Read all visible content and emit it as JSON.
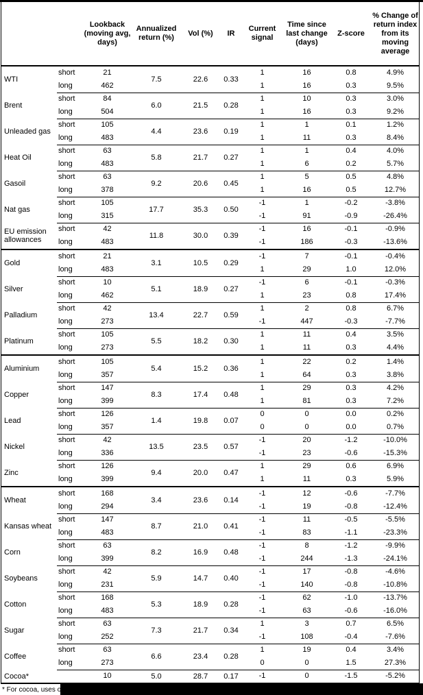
{
  "header": {
    "columns": [
      {
        "key": "name",
        "label": ""
      },
      {
        "key": "side",
        "label": ""
      },
      {
        "key": "lookback",
        "label": "Lookback (moving avg, days)"
      },
      {
        "key": "annualized-return",
        "label": "Annualized return (%)"
      },
      {
        "key": "vol",
        "label": "Vol (%)"
      },
      {
        "key": "ir",
        "label": "IR"
      },
      {
        "key": "current-signal",
        "label": "Current signal"
      },
      {
        "key": "time-since-last-change",
        "label": "Time since last change (days)"
      },
      {
        "key": "z-score",
        "label": "Z-score"
      },
      {
        "key": "pct-change-of-return-index",
        "label": "% Change of return index from its moving average"
      }
    ]
  },
  "groups": [
    {
      "key": "energy",
      "commodities": [
        {
          "name": "WTI",
          "annualized": "7.5",
          "vol": "22.6",
          "ir": "0.33",
          "rows": [
            {
              "side": "short",
              "lookback": "21",
              "signal": "1",
              "time": "16",
              "zscore": "0.8",
              "change": "4.9%"
            },
            {
              "side": "long",
              "lookback": "462",
              "signal": "1",
              "time": "16",
              "zscore": "0.3",
              "change": "9.5%"
            }
          ]
        },
        {
          "name": "Brent",
          "annualized": "6.0",
          "vol": "21.5",
          "ir": "0.28",
          "rows": [
            {
              "side": "short",
              "lookback": "84",
              "signal": "1",
              "time": "10",
              "zscore": "0.3",
              "change": "3.0%"
            },
            {
              "side": "long",
              "lookback": "504",
              "signal": "1",
              "time": "16",
              "zscore": "0.3",
              "change": "9.2%"
            }
          ]
        },
        {
          "name": "Unleaded gas",
          "annualized": "4.4",
          "vol": "23.6",
          "ir": "0.19",
          "rows": [
            {
              "side": "short",
              "lookback": "105",
              "signal": "1",
              "time": "1",
              "zscore": "0.1",
              "change": "1.2%"
            },
            {
              "side": "long",
              "lookback": "483",
              "signal": "1",
              "time": "11",
              "zscore": "0.3",
              "change": "8.4%"
            }
          ]
        },
        {
          "name": "Heat Oil",
          "annualized": "5.8",
          "vol": "21.7",
          "ir": "0.27",
          "rows": [
            {
              "side": "short",
              "lookback": "63",
              "signal": "1",
              "time": "1",
              "zscore": "0.4",
              "change": "4.0%"
            },
            {
              "side": "long",
              "lookback": "483",
              "signal": "1",
              "time": "6",
              "zscore": "0.2",
              "change": "5.7%"
            }
          ]
        },
        {
          "name": "Gasoil",
          "annualized": "9.2",
          "vol": "20.6",
          "ir": "0.45",
          "rows": [
            {
              "side": "short",
              "lookback": "63",
              "signal": "1",
              "time": "5",
              "zscore": "0.5",
              "change": "4.8%"
            },
            {
              "side": "long",
              "lookback": "378",
              "signal": "1",
              "time": "16",
              "zscore": "0.5",
              "change": "12.7%"
            }
          ]
        },
        {
          "name": "Nat gas",
          "annualized": "17.7",
          "vol": "35.3",
          "ir": "0.50",
          "rows": [
            {
              "side": "short",
              "lookback": "105",
              "signal": "-1",
              "time": "1",
              "zscore": "-0.2",
              "change": "-3.8%"
            },
            {
              "side": "long",
              "lookback": "315",
              "signal": "-1",
              "time": "91",
              "zscore": "-0.9",
              "change": "-26.4%"
            }
          ]
        },
        {
          "name": "EU emission allowances",
          "annualized": "11.8",
          "vol": "30.0",
          "ir": "0.39",
          "rows": [
            {
              "side": "short",
              "lookback": "42",
              "signal": "-1",
              "time": "16",
              "zscore": "-0.1",
              "change": "-0.9%"
            },
            {
              "side": "long",
              "lookback": "483",
              "signal": "-1",
              "time": "186",
              "zscore": "-0.3",
              "change": "-13.6%"
            }
          ]
        }
      ]
    },
    {
      "key": "precious-metals",
      "commodities": [
        {
          "name": "Gold",
          "annualized": "3.1",
          "vol": "10.5",
          "ir": "0.29",
          "rows": [
            {
              "side": "short",
              "lookback": "21",
              "signal": "-1",
              "time": "7",
              "zscore": "-0.1",
              "change": "-0.4%"
            },
            {
              "side": "long",
              "lookback": "483",
              "signal": "1",
              "time": "29",
              "zscore": "1.0",
              "change": "12.0%"
            }
          ]
        },
        {
          "name": "Silver",
          "annualized": "5.1",
          "vol": "18.9",
          "ir": "0.27",
          "rows": [
            {
              "side": "short",
              "lookback": "10",
              "signal": "-1",
              "time": "6",
              "zscore": "-0.1",
              "change": "-0.3%"
            },
            {
              "side": "long",
              "lookback": "462",
              "signal": "1",
              "time": "23",
              "zscore": "0.8",
              "change": "17.4%"
            }
          ]
        },
        {
          "name": "Palladium",
          "annualized": "13.4",
          "vol": "22.7",
          "ir": "0.59",
          "rows": [
            {
              "side": "short",
              "lookback": "42",
              "signal": "1",
              "time": "2",
              "zscore": "0.8",
              "change": "6.7%"
            },
            {
              "side": "long",
              "lookback": "273",
              "signal": "-1",
              "time": "447",
              "zscore": "-0.3",
              "change": "-7.7%"
            }
          ]
        },
        {
          "name": "Platinum",
          "annualized": "5.5",
          "vol": "18.2",
          "ir": "0.30",
          "rows": [
            {
              "side": "short",
              "lookback": "105",
              "signal": "1",
              "time": "11",
              "zscore": "0.4",
              "change": "3.5%"
            },
            {
              "side": "long",
              "lookback": "273",
              "signal": "1",
              "time": "11",
              "zscore": "0.3",
              "change": "4.4%"
            }
          ]
        }
      ]
    },
    {
      "key": "base-metals",
      "commodities": [
        {
          "name": "Aluminium",
          "annualized": "5.4",
          "vol": "15.2",
          "ir": "0.36",
          "rows": [
            {
              "side": "short",
              "lookback": "105",
              "signal": "1",
              "time": "22",
              "zscore": "0.2",
              "change": "1.4%"
            },
            {
              "side": "long",
              "lookback": "357",
              "signal": "1",
              "time": "64",
              "zscore": "0.3",
              "change": "3.8%"
            }
          ]
        },
        {
          "name": "Copper",
          "annualized": "8.3",
          "vol": "17.4",
          "ir": "0.48",
          "rows": [
            {
              "side": "short",
              "lookback": "147",
              "signal": "1",
              "time": "29",
              "zscore": "0.3",
              "change": "4.2%"
            },
            {
              "side": "long",
              "lookback": "399",
              "signal": "1",
              "time": "81",
              "zscore": "0.3",
              "change": "7.2%"
            }
          ]
        },
        {
          "name": "Lead",
          "annualized": "1.4",
          "vol": "19.8",
          "ir": "0.07",
          "rows": [
            {
              "side": "short",
              "lookback": "126",
              "signal": "0",
              "time": "0",
              "zscore": "0.0",
              "change": "0.2%"
            },
            {
              "side": "long",
              "lookback": "357",
              "signal": "0",
              "time": "0",
              "zscore": "0.0",
              "change": "0.7%"
            }
          ]
        },
        {
          "name": "Nickel",
          "annualized": "13.5",
          "vol": "23.5",
          "ir": "0.57",
          "rows": [
            {
              "side": "short",
              "lookback": "42",
              "signal": "-1",
              "time": "20",
              "zscore": "-1.2",
              "change": "-10.0%"
            },
            {
              "side": "long",
              "lookback": "336",
              "signal": "-1",
              "time": "23",
              "zscore": "-0.6",
              "change": "-15.3%"
            }
          ]
        },
        {
          "name": "Zinc",
          "annualized": "9.4",
          "vol": "20.0",
          "ir": "0.47",
          "rows": [
            {
              "side": "short",
              "lookback": "126",
              "signal": "1",
              "time": "29",
              "zscore": "0.6",
              "change": "6.9%"
            },
            {
              "side": "long",
              "lookback": "399",
              "signal": "1",
              "time": "11",
              "zscore": "0.3",
              "change": "5.9%"
            }
          ]
        }
      ]
    },
    {
      "key": "agriculture",
      "commodities": [
        {
          "name": "Wheat",
          "annualized": "3.4",
          "vol": "23.6",
          "ir": "0.14",
          "rows": [
            {
              "side": "short",
              "lookback": "168",
              "signal": "-1",
              "time": "12",
              "zscore": "-0.6",
              "change": "-7.7%"
            },
            {
              "side": "long",
              "lookback": "294",
              "signal": "-1",
              "time": "19",
              "zscore": "-0.8",
              "change": "-12.4%"
            }
          ]
        },
        {
          "name": "Kansas wheat",
          "annualized": "8.7",
          "vol": "21.0",
          "ir": "0.41",
          "rows": [
            {
              "side": "short",
              "lookback": "147",
              "signal": "-1",
              "time": "11",
              "zscore": "-0.5",
              "change": "-5.5%"
            },
            {
              "side": "long",
              "lookback": "483",
              "signal": "-1",
              "time": "83",
              "zscore": "-1.1",
              "change": "-23.3%"
            }
          ]
        },
        {
          "name": "Corn",
          "annualized": "8.2",
          "vol": "16.9",
          "ir": "0.48",
          "rows": [
            {
              "side": "short",
              "lookback": "63",
              "signal": "-1",
              "time": "8",
              "zscore": "-1.2",
              "change": "-9.9%"
            },
            {
              "side": "long",
              "lookback": "399",
              "signal": "-1",
              "time": "244",
              "zscore": "-1.3",
              "change": "-24.1%"
            }
          ]
        },
        {
          "name": "Soybeans",
          "annualized": "5.9",
          "vol": "14.7",
          "ir": "0.40",
          "rows": [
            {
              "side": "short",
              "lookback": "42",
              "signal": "-1",
              "time": "17",
              "zscore": "-0.8",
              "change": "-4.6%"
            },
            {
              "side": "long",
              "lookback": "231",
              "signal": "-1",
              "time": "140",
              "zscore": "-0.8",
              "change": "-10.8%"
            }
          ]
        },
        {
          "name": "Cotton",
          "annualized": "5.3",
          "vol": "18.9",
          "ir": "0.28",
          "rows": [
            {
              "side": "short",
              "lookback": "168",
              "signal": "-1",
              "time": "62",
              "zscore": "-1.0",
              "change": "-13.7%"
            },
            {
              "side": "long",
              "lookback": "483",
              "signal": "-1",
              "time": "63",
              "zscore": "-0.6",
              "change": "-16.0%"
            }
          ]
        },
        {
          "name": "Sugar",
          "annualized": "7.3",
          "vol": "21.7",
          "ir": "0.34",
          "rows": [
            {
              "side": "short",
              "lookback": "63",
              "signal": "1",
              "time": "3",
              "zscore": "0.7",
              "change": "6.5%"
            },
            {
              "side": "long",
              "lookback": "252",
              "signal": "-1",
              "time": "108",
              "zscore": "-0.4",
              "change": "-7.6%"
            }
          ]
        },
        {
          "name": "Coffee",
          "annualized": "6.6",
          "vol": "23.4",
          "ir": "0.28",
          "rows": [
            {
              "side": "short",
              "lookback": "63",
              "signal": "1",
              "time": "19",
              "zscore": "0.4",
              "change": "3.4%"
            },
            {
              "side": "long",
              "lookback": "273",
              "signal": "0",
              "time": "0",
              "zscore": "1.5",
              "change": "27.3%"
            }
          ]
        },
        {
          "name": "Cocoa*",
          "annualized": "5.0",
          "vol": "28.7",
          "ir": "0.17",
          "rows": [
            {
              "side": "",
              "lookback": "10",
              "signal": "-1",
              "time": "0",
              "zscore": "-1.5",
              "change": "-5.2%"
            }
          ]
        }
      ]
    }
  ],
  "footnote": {
    "text": "* For cocoa, uses o"
  }
}
